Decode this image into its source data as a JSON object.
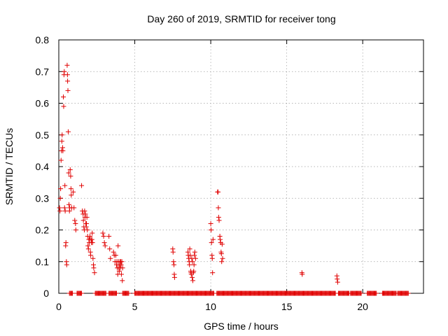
{
  "chart_data": {
    "type": "scatter",
    "title": "Day 260 of 2019, SRMTID for receiver tong",
    "xlabel": "GPS time / hours",
    "ylabel": "SRMTID / TECUs",
    "xlim": [
      0,
      24
    ],
    "ylim": [
      0,
      0.8
    ],
    "xticks": [
      0,
      5,
      10,
      15,
      20
    ],
    "xtick_labels": [
      "0",
      "5",
      "10",
      "15",
      "20"
    ],
    "yticks": [
      0,
      0.1,
      0.2,
      0.3,
      0.4,
      0.5,
      0.6,
      0.7,
      0.8
    ],
    "ytick_labels": [
      "0",
      "0.1",
      "0.2",
      "0.3",
      "0.4",
      "0.5",
      "0.6",
      "0.7",
      "0.8"
    ],
    "grid": true,
    "marker": "+",
    "marker_color": "#e00000",
    "series": [
      {
        "name": "SRMTID",
        "points": [
          [
            0.05,
            0.27
          ],
          [
            0.08,
            0.26
          ],
          [
            0.1,
            0.3
          ],
          [
            0.12,
            0.33
          ],
          [
            0.15,
            0.42
          ],
          [
            0.18,
            0.45
          ],
          [
            0.2,
            0.48
          ],
          [
            0.22,
            0.5
          ],
          [
            0.25,
            0.46
          ],
          [
            0.27,
            0.45
          ],
          [
            0.3,
            0.62
          ],
          [
            0.32,
            0.59
          ],
          [
            0.34,
            0.69
          ],
          [
            0.36,
            0.7
          ],
          [
            0.38,
            0.27
          ],
          [
            0.4,
            0.34
          ],
          [
            0.42,
            0.26
          ],
          [
            0.45,
            0.15
          ],
          [
            0.47,
            0.16
          ],
          [
            0.5,
            0.1
          ],
          [
            0.52,
            0.09
          ],
          [
            0.55,
            0.72
          ],
          [
            0.57,
            0.69
          ],
          [
            0.58,
            0.67
          ],
          [
            0.6,
            0.64
          ],
          [
            0.62,
            0.51
          ],
          [
            0.65,
            0.38
          ],
          [
            0.67,
            0.28
          ],
          [
            0.7,
            0.26
          ],
          [
            0.72,
            0.27
          ],
          [
            0.75,
            0.39
          ],
          [
            0.78,
            0.37
          ],
          [
            0.8,
            0.33
          ],
          [
            0.82,
            0.31
          ],
          [
            0.85,
            0.27
          ],
          [
            0.95,
            0.32
          ],
          [
            1.0,
            0.27
          ],
          [
            1.05,
            0.23
          ],
          [
            1.1,
            0.22
          ],
          [
            1.12,
            0.2
          ],
          [
            1.5,
            0.34
          ],
          [
            1.55,
            0.26
          ],
          [
            1.6,
            0.25
          ],
          [
            1.62,
            0.23
          ],
          [
            1.65,
            0.21
          ],
          [
            1.68,
            0.2
          ],
          [
            1.7,
            0.26
          ],
          [
            1.72,
            0.24
          ],
          [
            1.75,
            0.25
          ],
          [
            1.78,
            0.22
          ],
          [
            1.8,
            0.21
          ],
          [
            1.82,
            0.22
          ],
          [
            1.85,
            0.24
          ],
          [
            1.88,
            0.2
          ],
          [
            1.9,
            0.18
          ],
          [
            1.92,
            0.15
          ],
          [
            1.95,
            0.14
          ],
          [
            1.98,
            0.17
          ],
          [
            2.0,
            0.16
          ],
          [
            2.02,
            0.17
          ],
          [
            2.05,
            0.18
          ],
          [
            2.08,
            0.13
          ],
          [
            2.1,
            0.12
          ],
          [
            2.12,
            0.17
          ],
          [
            2.15,
            0.16
          ],
          [
            2.18,
            0.17
          ],
          [
            2.2,
            0.19
          ],
          [
            2.22,
            0.16
          ],
          [
            2.25,
            0.11
          ],
          [
            2.28,
            0.09
          ],
          [
            2.3,
            0.08
          ],
          [
            2.35,
            0.065
          ],
          [
            2.9,
            0.19
          ],
          [
            2.95,
            0.18
          ],
          [
            3.0,
            0.16
          ],
          [
            3.05,
            0.15
          ],
          [
            3.3,
            0.18
          ],
          [
            3.35,
            0.14
          ],
          [
            3.4,
            0.11
          ],
          [
            3.6,
            0.13
          ],
          [
            3.65,
            0.12
          ],
          [
            3.7,
            0.1
          ],
          [
            3.75,
            0.12
          ],
          [
            3.8,
            0.09
          ],
          [
            3.82,
            0.1
          ],
          [
            3.85,
            0.08
          ],
          [
            3.88,
            0.06
          ],
          [
            3.9,
            0.15
          ],
          [
            3.92,
            0.1
          ],
          [
            3.95,
            0.08
          ],
          [
            3.98,
            0.07
          ],
          [
            4.0,
            0.09
          ],
          [
            4.02,
            0.1
          ],
          [
            4.05,
            0.08
          ],
          [
            4.08,
            0.1
          ],
          [
            4.1,
            0.09
          ],
          [
            4.12,
            0.06
          ],
          [
            4.15,
            0.1
          ],
          [
            4.18,
            0.04
          ],
          [
            4.2,
            0.08
          ],
          [
            7.5,
            0.14
          ],
          [
            7.52,
            0.13
          ],
          [
            7.55,
            0.1
          ],
          [
            7.58,
            0.09
          ],
          [
            7.6,
            0.06
          ],
          [
            7.62,
            0.05
          ],
          [
            8.5,
            0.13
          ],
          [
            8.52,
            0.12
          ],
          [
            8.55,
            0.11
          ],
          [
            8.58,
            0.1
          ],
          [
            8.6,
            0.09
          ],
          [
            8.62,
            0.14
          ],
          [
            8.65,
            0.12
          ],
          [
            8.68,
            0.07
          ],
          [
            8.7,
            0.065
          ],
          [
            8.72,
            0.06
          ],
          [
            8.75,
            0.11
          ],
          [
            8.78,
            0.05
          ],
          [
            8.8,
            0.1
          ],
          [
            8.82,
            0.04
          ],
          [
            8.85,
            0.065
          ],
          [
            8.88,
            0.07
          ],
          [
            8.9,
            0.09
          ],
          [
            8.92,
            0.12
          ],
          [
            8.95,
            0.13
          ],
          [
            9.0,
            0.11
          ],
          [
            10.0,
            0.22
          ],
          [
            10.02,
            0.2
          ],
          [
            10.05,
            0.16
          ],
          [
            10.08,
            0.12
          ],
          [
            10.1,
            0.11
          ],
          [
            10.12,
            0.065
          ],
          [
            10.15,
            0.17
          ],
          [
            10.45,
            0.32
          ],
          [
            10.48,
            0.32
          ],
          [
            10.5,
            0.27
          ],
          [
            10.52,
            0.24
          ],
          [
            10.55,
            0.23
          ],
          [
            10.6,
            0.18
          ],
          [
            10.62,
            0.17
          ],
          [
            10.65,
            0.16
          ],
          [
            10.68,
            0.13
          ],
          [
            10.7,
            0.125
          ],
          [
            10.72,
            0.1
          ],
          [
            10.75,
            0.155
          ],
          [
            10.78,
            0.11
          ],
          [
            16.0,
            0.065
          ],
          [
            16.02,
            0.06
          ],
          [
            18.3,
            0.055
          ],
          [
            18.32,
            0.045
          ],
          [
            18.35,
            0.035
          ]
        ],
        "zero_intervals": [
          [
            0.7,
            0.9
          ],
          [
            1.2,
            1.5
          ],
          [
            2.4,
            3.1
          ],
          [
            3.3,
            3.8
          ],
          [
            4.2,
            4.6
          ],
          [
            5.0,
            10.2
          ],
          [
            10.4,
            18.2
          ],
          [
            18.4,
            19.1
          ],
          [
            19.2,
            19.9
          ],
          [
            20.3,
            20.9
          ],
          [
            21.3,
            22.2
          ],
          [
            22.3,
            23.0
          ]
        ],
        "zero_step": 0.05
      }
    ]
  }
}
